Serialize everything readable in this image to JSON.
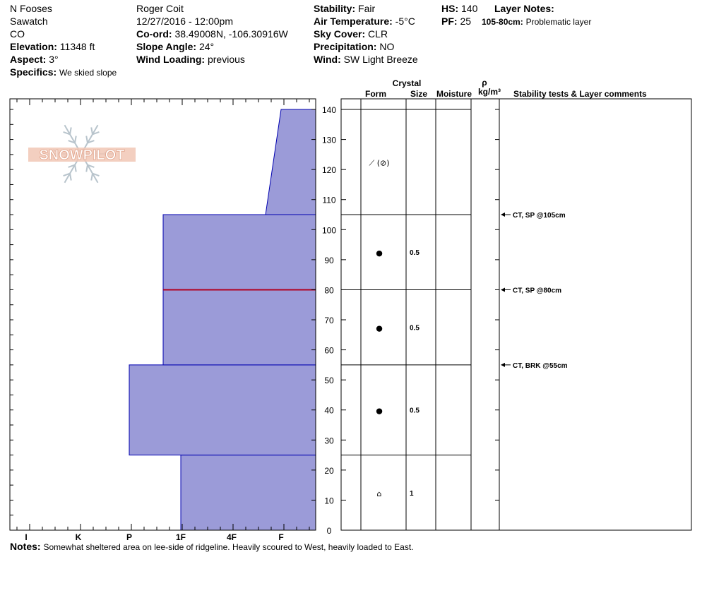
{
  "header": {
    "location": "N Fooses",
    "range": "Sawatch",
    "state": "CO",
    "elevation_label": "Elevation:",
    "elevation": "11348 ft",
    "aspect_label": "Aspect:",
    "aspect": "3°",
    "specifics_label": "Specifics:",
    "specifics": "We skied slope",
    "observer": "Roger Coit",
    "datetime": "12/27/2016 - 12:00pm",
    "coord_label": "Co-ord:",
    "coord": "38.49008N, -106.30916W",
    "slope_label": "Slope Angle:",
    "slope": "24°",
    "wind_loading_label": "Wind Loading:",
    "wind_loading": "previous",
    "stability_label": "Stability:",
    "stability": "Fair",
    "air_temp_label": "Air Temperature:",
    "air_temp": "-5°C",
    "sky_label": "Sky Cover:",
    "sky": "CLR",
    "precip_label": "Precipitation:",
    "precip": "NO",
    "wind_label": "Wind:",
    "wind": "SW Light Breeze",
    "hs_label": "HS:",
    "hs": "140",
    "pf_label": "PF:",
    "pf": "25",
    "layer_notes_label": "Layer Notes:",
    "layer_notes_range": "105-80cm:",
    "layer_notes_text": "Problematic layer"
  },
  "columns": {
    "crystal": "Crystal",
    "form": "Form",
    "size": "Size",
    "moisture": "Moisture",
    "rho": "ρ",
    "density_unit": "kg/m³",
    "stability": "Stability tests & Layer comments"
  },
  "logo_text": "SNOWPILOT",
  "notes_label": "Notes:",
  "notes": "Somewhat sheltered area on lee-side of ridgeline.  Heavily scoured to West, heavily loaded to East.",
  "chart_data": {
    "type": "area",
    "ylim": [
      0,
      140
    ],
    "y_ticks": [
      0,
      10,
      20,
      30,
      40,
      50,
      60,
      70,
      80,
      90,
      100,
      110,
      120,
      130,
      140
    ],
    "hardness_scale": [
      "I",
      "K",
      "P",
      "1F",
      "4F",
      "F"
    ],
    "hardness_profile": [
      {
        "bottom": 0,
        "top": 25,
        "hardness": "1F"
      },
      {
        "bottom": 25,
        "top": 55,
        "hardness": "P+"
      },
      {
        "bottom": 55,
        "top": 105,
        "hardness": "1F-"
      },
      {
        "bottom": 105,
        "top": 140,
        "hardness": "4F to F"
      }
    ],
    "problem_layer_cm": 80,
    "layers": [
      {
        "bottom": 105,
        "top": 140,
        "form": "⟋ (⊘)",
        "size": ""
      },
      {
        "bottom": 80,
        "top": 105,
        "form": "●",
        "size": "0.5"
      },
      {
        "bottom": 55,
        "top": 80,
        "form": "●",
        "size": "0.5"
      },
      {
        "bottom": 25,
        "top": 55,
        "form": "●",
        "size": "0.5"
      },
      {
        "bottom": 0,
        "top": 25,
        "form": "⌂",
        "size": "1"
      }
    ],
    "tests": [
      {
        "depth": 105,
        "text": "CT, SP @105cm"
      },
      {
        "depth": 80,
        "text": "CT, SP @80cm"
      },
      {
        "depth": 55,
        "text": "CT, BRK @55cm"
      }
    ],
    "colors": {
      "fill": "#9b9bd8",
      "border": "#0000b0",
      "problem": "#b00020"
    }
  }
}
